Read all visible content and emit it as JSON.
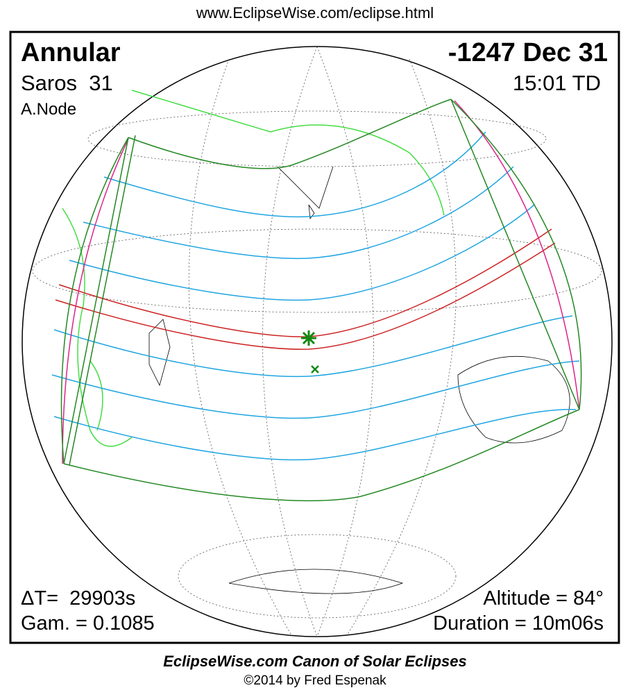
{
  "header": {
    "url": "www.EclipseWise.com/eclipse.html"
  },
  "panel": {
    "eclipse_type": "Annular",
    "date": "-1247 Dec 31",
    "saros": "Saros  31",
    "time": "15:01 TD",
    "node": "A.Node",
    "delta_t": "ΔT=  29903s",
    "gamma": "Gam. = 0.1085",
    "altitude": "Altitude = 84°",
    "duration": "Duration = 10m06s"
  },
  "footer": {
    "title": "EclipseWise.com Canon of Solar Eclipses",
    "copyright": "©2014 by Fred Espenak"
  }
}
